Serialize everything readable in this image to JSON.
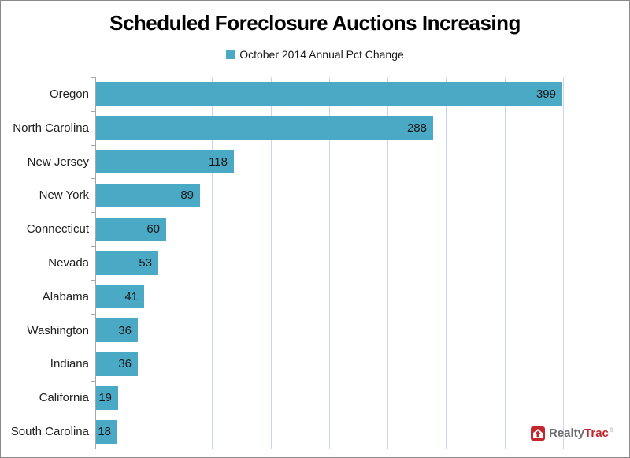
{
  "title": "Scheduled Foreclosure Auctions Increasing",
  "legend": {
    "label": "October 2014 Annual Pct Change"
  },
  "chart_data": {
    "type": "bar",
    "orientation": "horizontal",
    "title": "Scheduled Foreclosure Auctions Increasing",
    "legend_entries": [
      "October 2014 Annual Pct Change"
    ],
    "legend_position": "top",
    "categories": [
      "Oregon",
      "North Carolina",
      "New Jersey",
      "New York",
      "Connecticut",
      "Nevada",
      "Alabama",
      "Washington",
      "Indiana",
      "California",
      "South Carolina"
    ],
    "values": [
      399,
      288,
      118,
      89,
      60,
      53,
      41,
      36,
      36,
      19,
      18
    ],
    "xlim": [
      0,
      450
    ],
    "gridline_interval": 50,
    "grid": true,
    "data_labels": "inside-end",
    "xlabel": "",
    "ylabel": ""
  },
  "colors": {
    "bar": "#4AA9C5",
    "gridline": "#C7D5EE",
    "axis": "#A6A6A6",
    "title_text": "#000000",
    "label_text": "#1F1F1F",
    "frame_border": "#8A8A8A",
    "logo_red": "#C1272D",
    "logo_gray": "#6D6E71"
  },
  "logo": {
    "realty": "Realty",
    "trac": "Trac",
    "mark": "®"
  }
}
